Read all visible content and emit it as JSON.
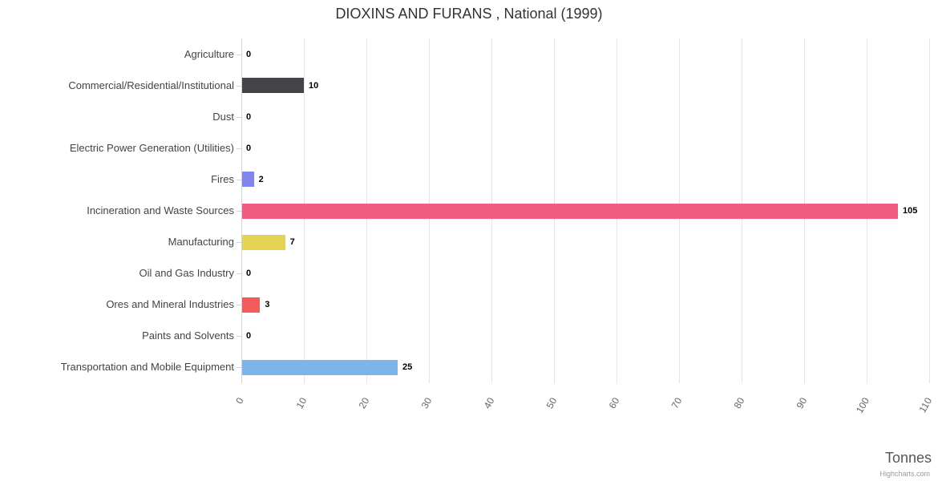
{
  "title": "DIOXINS AND FURANS , National (1999)",
  "credit": "Highcharts.com",
  "chart_data": {
    "type": "bar",
    "title": "DIOXINS AND FURANS , National (1999)",
    "categories": [
      "Agriculture",
      "Commercial/Residential/Institutional",
      "Dust",
      "Electric Power Generation (Utilities)",
      "Fires",
      "Incineration and Waste Sources",
      "Manufacturing",
      "Oil and Gas Industry",
      "Ores and Mineral Industries",
      "Paints and Solvents",
      "Transportation and Mobile Equipment"
    ],
    "values": [
      0,
      10,
      0,
      0,
      2,
      105,
      7,
      0,
      3,
      0,
      25
    ],
    "data_labels": [
      "0",
      "10",
      "0",
      "0",
      "2",
      "105",
      "7",
      "0",
      "3",
      "0",
      "25"
    ],
    "colors": [
      "#7cb5ec",
      "#434348",
      "#90ed7d",
      "#f7a35c",
      "#8085e9",
      "#f15c80",
      "#e4d354",
      "#2b908f",
      "#f45b5b",
      "#91e8e1",
      "#7cb5ec"
    ],
    "xlabel": "Tonnes",
    "xlim": [
      0,
      110
    ],
    "xticks": [
      0,
      10,
      20,
      30,
      40,
      50,
      60,
      70,
      80,
      90,
      100,
      110
    ],
    "grid": true,
    "legend": false,
    "grid_color": "#e6e6e6",
    "axis_line_color": "#ccd6eb"
  }
}
